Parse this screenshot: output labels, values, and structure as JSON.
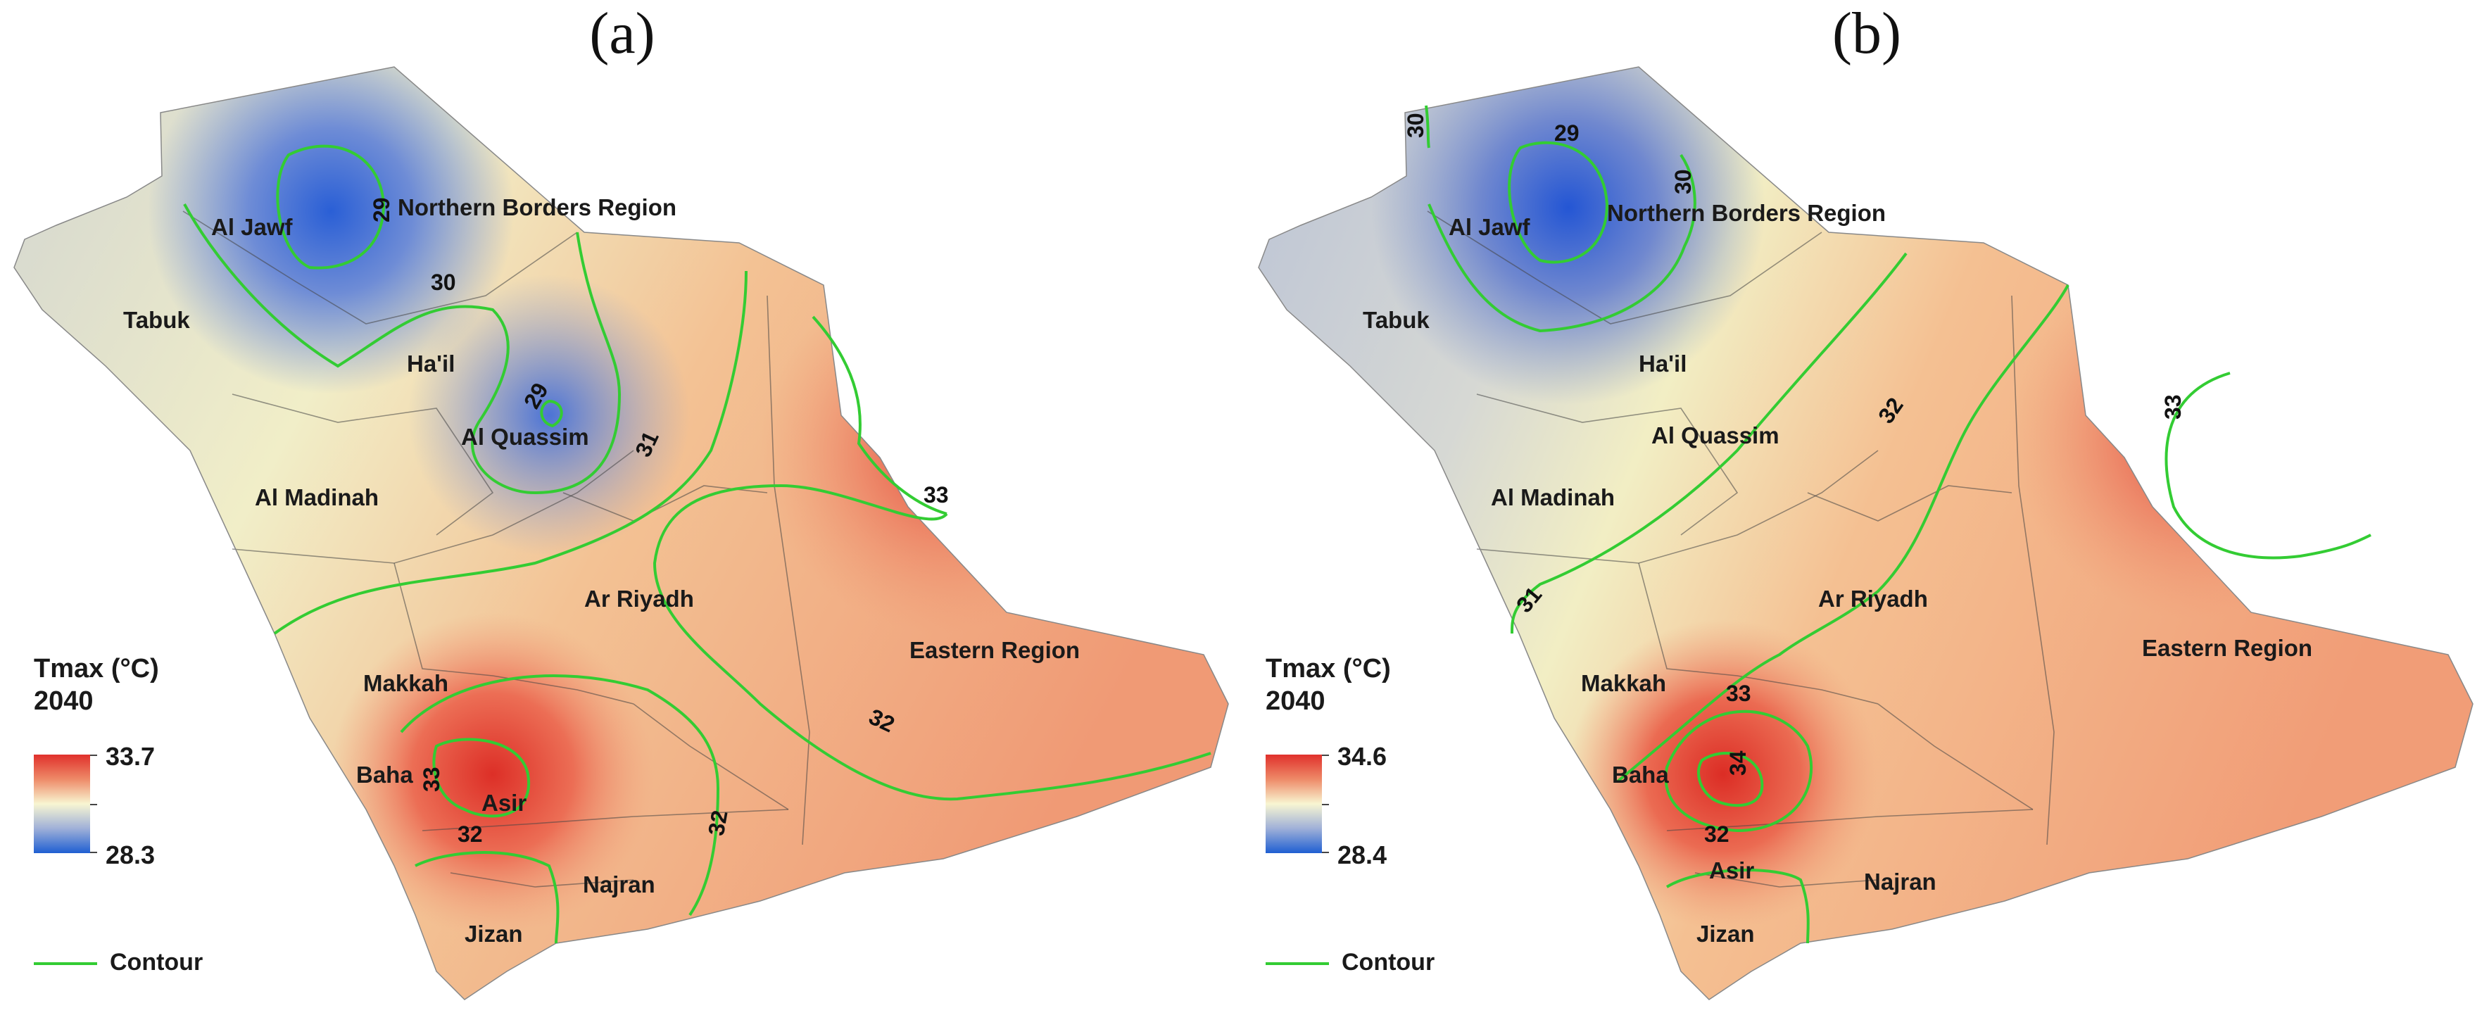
{
  "panels": [
    {
      "id": "a",
      "title": "(a)",
      "regions": {
        "al_jawf": "Al Jawf",
        "northern_borders": "Northern Borders Region",
        "tabuk": "Tabuk",
        "hail": "Ha'il",
        "al_quassim": "Al Quassim",
        "al_madinah": "Al Madinah",
        "ar_riyadh": "Ar Riyadh",
        "eastern_region": "Eastern Region",
        "makkah": "Makkah",
        "baha": "Baha",
        "asir": "Asir",
        "najran": "Najran",
        "jizan": "Jizan"
      },
      "contour_labels": [
        "29",
        "30",
        "29",
        "31",
        "33",
        "32",
        "33",
        "32",
        "32"
      ],
      "legend": {
        "title_line1": "Tmax (°C)",
        "title_line2": "2040",
        "max": "33.7",
        "min": "28.3",
        "contour_label": "Contour"
      }
    },
    {
      "id": "b",
      "title": "(b)",
      "regions": {
        "al_jawf": "Al Jawf",
        "northern_borders": "Northern Borders Region",
        "tabuk": "Tabuk",
        "hail": "Ha'il",
        "al_quassim": "Al Quassim",
        "al_madinah": "Al Madinah",
        "ar_riyadh": "Ar Riyadh",
        "eastern_region": "Eastern Region",
        "makkah": "Makkah",
        "baha": "Baha",
        "asir": "Asir",
        "najran": "Najran",
        "jizan": "Jizan"
      },
      "contour_labels": [
        "30",
        "29",
        "30",
        "32",
        "33",
        "31",
        "33",
        "34",
        "32"
      ],
      "legend": {
        "title_line1": "Tmax (°C)",
        "title_line2": "2040",
        "max": "34.6",
        "min": "28.4",
        "contour_label": "Contour"
      }
    }
  ],
  "colors": {
    "warm": "#e0302b",
    "mid": "#f8f6d2",
    "cool": "#1f5fd2",
    "contour": "#33cc33"
  }
}
